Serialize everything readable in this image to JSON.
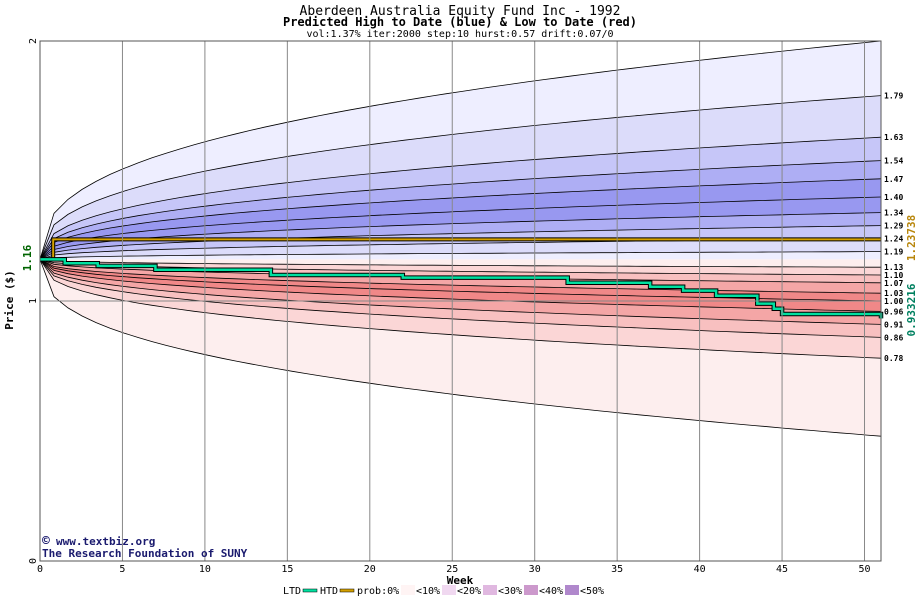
{
  "chart_data": {
    "type": "area",
    "title": "Aberdeen Australia Equity Fund Inc - 1992",
    "subtitle": "Predicted High to Date (blue) &  Low to Date (red)",
    "params": "vol:1.37% iter:2000 step:10 hurst:0.57 drift:0.07/0",
    "xlabel": "Week",
    "ylabel": "Price ($)",
    "xlim": [
      0,
      51
    ],
    "ylim": [
      0,
      2
    ],
    "x_ticks": [
      0,
      5,
      10,
      15,
      20,
      25,
      30,
      35,
      40,
      45,
      50
    ],
    "y_ticks": [
      0,
      1,
      2
    ],
    "grid": true,
    "start_price": 1.16,
    "start_price_label": "1.16",
    "right_labels": [
      "1.79",
      "1.63",
      "1.54",
      "1.47",
      "1.40",
      "1.34",
      "1.29",
      "1.24",
      "1.19",
      "1.13",
      "1.10",
      "1.07",
      "1.03",
      "1.00",
      "0.96",
      "0.91",
      "0.86",
      "0.78"
    ],
    "high_quantiles_end": [
      1.79,
      1.63,
      1.54,
      1.47,
      1.4,
      1.34,
      1.29,
      1.24,
      1.19
    ],
    "low_quantiles_end": [
      1.13,
      1.1,
      1.07,
      1.03,
      1.0,
      0.96,
      0.91,
      0.86,
      0.78
    ],
    "upper_envelope_end": 2.0,
    "lower_envelope_end": 0.48,
    "ltd_series": {
      "name": "LTD",
      "final_value": 0.933216,
      "final_label": "0.933216",
      "color": "#00e0a0",
      "steps": [
        [
          0,
          1.16
        ],
        [
          1.5,
          1.145
        ],
        [
          3.5,
          1.135
        ],
        [
          7,
          1.12
        ],
        [
          14,
          1.1
        ],
        [
          22,
          1.09
        ],
        [
          32,
          1.07
        ],
        [
          37,
          1.055
        ],
        [
          39,
          1.04
        ],
        [
          41,
          1.02
        ],
        [
          43.5,
          0.99
        ],
        [
          44.5,
          0.97
        ],
        [
          45,
          0.95
        ],
        [
          51,
          0.933
        ]
      ]
    },
    "htd_series": {
      "name": "HTD",
      "final_value": 1.23738,
      "final_label": "1.23738",
      "color": "#d4a000",
      "steps": [
        [
          0,
          1.16
        ],
        [
          0.8,
          1.237
        ],
        [
          51,
          1.237
        ]
      ]
    },
    "band_colors": {
      "blue": [
        "#ffffff",
        "#eeeeff",
        "#dcdcfa",
        "#c6c6f8",
        "#aeaef4",
        "#9898f0"
      ],
      "red": [
        "#ffffff",
        "#fdeeee",
        "#fbd6d6",
        "#f8c0c0",
        "#f4a6a6",
        "#f08888"
      ]
    },
    "credit_lines": [
      "www.textbiz.org",
      "The Research Foundation of SUNY"
    ],
    "copyright_symbol": "©",
    "legend": {
      "ltd_label": "LTD",
      "htd_label": "HTD",
      "prob_label": "prob:0%",
      "bins": [
        "<10%",
        "<20%",
        "<30%",
        "<40%",
        "<50%"
      ],
      "bin_colors": [
        "#fff4f4",
        "#f0d8f0",
        "#e0b8e0",
        "#cc99cc",
        "#b088cc"
      ]
    }
  }
}
